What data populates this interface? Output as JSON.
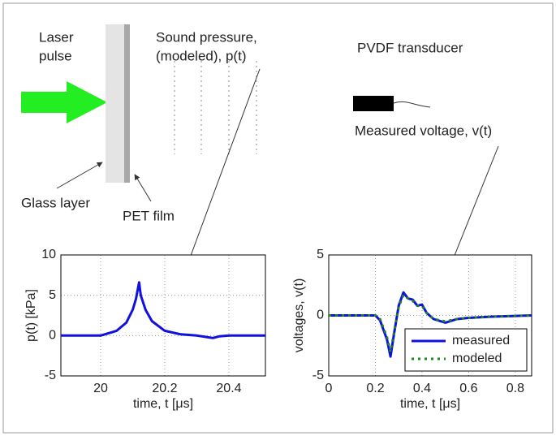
{
  "diagram": {
    "laser_line1": "Laser",
    "laser_line2": "pulse",
    "sound_line1": "Sound pressure,",
    "sound_line2": "(modeled), p(t)",
    "pvdf": "PVDF transducer",
    "measured": "Measured voltage, v(t)",
    "glass": "Glass layer",
    "pet": "PET film"
  },
  "chart_data": [
    {
      "type": "line",
      "xlabel": "time, t [μs]",
      "ylabel": "p(t) [kPa]",
      "xlim": [
        19.876,
        20.514
      ],
      "ylim": [
        -5,
        10
      ],
      "xticks": [
        20,
        20.2,
        20.4
      ],
      "yticks": [
        -5,
        0,
        5,
        10
      ],
      "grid": true,
      "x": [
        19.876,
        20.0,
        20.05,
        20.08,
        20.1,
        20.11,
        20.12,
        20.125,
        20.14,
        20.16,
        20.2,
        20.25,
        20.3,
        20.35,
        20.37,
        20.4,
        20.514
      ],
      "series": [
        {
          "name": null,
          "color": "#1010e0",
          "style": "solid",
          "values": [
            0,
            0,
            0.6,
            1.6,
            3.2,
            4.5,
            6.6,
            5.0,
            3.2,
            1.8,
            0.6,
            0.15,
            0,
            -0.3,
            -0.1,
            0,
            0
          ]
        }
      ]
    },
    {
      "type": "line",
      "xlabel": "time, t [μs]",
      "ylabel": "voltages, v(t)",
      "xlim": [
        0,
        0.87
      ],
      "ylim": [
        -5,
        5
      ],
      "xticks": [
        0,
        0.2,
        0.4,
        0.6,
        0.8
      ],
      "yticks": [
        -5,
        0,
        5
      ],
      "grid": true,
      "legend": "lower right",
      "x": [
        0,
        0.2,
        0.22,
        0.25,
        0.265,
        0.28,
        0.3,
        0.32,
        0.34,
        0.36,
        0.38,
        0.4,
        0.42,
        0.45,
        0.5,
        0.55,
        0.6,
        0.7,
        0.87
      ],
      "series": [
        {
          "name": "measured",
          "color": "#1010e0",
          "style": "solid",
          "values": [
            0,
            0,
            -0.4,
            -2,
            -3.4,
            -1.5,
            0.8,
            1.9,
            1.4,
            1.3,
            0.8,
            0.9,
            0.2,
            -0.3,
            -0.6,
            -0.3,
            -0.2,
            -0.1,
            0
          ]
        },
        {
          "name": "modeled",
          "color": "#1a8a1a",
          "style": "dotted",
          "values": [
            0,
            0,
            -0.3,
            -1.8,
            -3.0,
            -1.4,
            0.7,
            1.7,
            1.4,
            1.2,
            0.8,
            0.8,
            0.2,
            -0.3,
            -0.5,
            -0.3,
            -0.2,
            -0.1,
            0
          ]
        }
      ]
    }
  ]
}
